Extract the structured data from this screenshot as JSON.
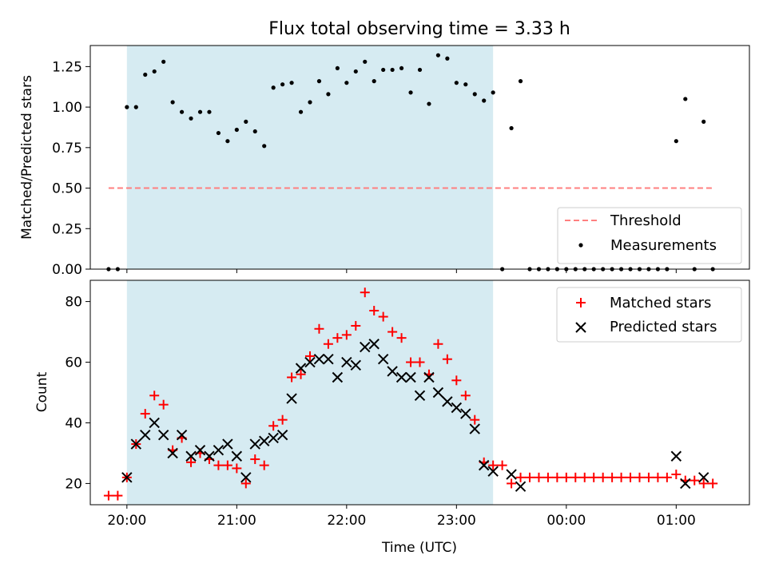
{
  "chart_data": [
    {
      "type": "scatter",
      "title": "Flux total observing time = 3.33 h",
      "ylabel": "Matched/Predicted stars",
      "xlabel": "",
      "ylim": [
        0,
        1.38
      ],
      "yticks": [
        0.0,
        0.25,
        0.5,
        0.75,
        1.0,
        1.25
      ],
      "ytick_labels": [
        "0.00",
        "0.25",
        "0.50",
        "0.75",
        "1.00",
        "1.25"
      ],
      "shaded_region": {
        "x_start": "20:00",
        "x_end": "23:20",
        "color": "#add8e6"
      },
      "legend": {
        "placement": "lower-right",
        "entries": [
          "Threshold",
          "Measurements"
        ]
      },
      "threshold": {
        "name": "Threshold",
        "value": 0.5,
        "x_start": "19:50",
        "x_end": "01:20",
        "color": "#ff7f7f"
      },
      "series": [
        {
          "name": "Measurements",
          "color": "#000000",
          "x": [
            "19:50",
            "19:55",
            "20:00",
            "20:05",
            "20:10",
            "20:15",
            "20:20",
            "20:25",
            "20:30",
            "20:35",
            "20:40",
            "20:45",
            "20:50",
            "20:55",
            "21:00",
            "21:05",
            "21:10",
            "21:15",
            "21:20",
            "21:25",
            "21:30",
            "21:35",
            "21:40",
            "21:45",
            "21:50",
            "21:55",
            "22:00",
            "22:05",
            "22:10",
            "22:15",
            "22:20",
            "22:25",
            "22:30",
            "22:35",
            "22:40",
            "22:45",
            "22:50",
            "22:55",
            "23:00",
            "23:05",
            "23:10",
            "23:15",
            "23:20",
            "23:25",
            "23:30",
            "23:35",
            "23:40",
            "23:45",
            "23:50",
            "23:55",
            "00:00",
            "00:05",
            "00:10",
            "00:15",
            "00:20",
            "00:25",
            "00:30",
            "00:35",
            "00:40",
            "00:45",
            "00:50",
            "00:55",
            "01:00",
            "01:05",
            "01:10",
            "01:15",
            "01:20"
          ],
          "y": [
            0.0,
            0.0,
            1.0,
            1.0,
            1.2,
            1.22,
            1.28,
            1.03,
            0.97,
            0.93,
            0.97,
            0.97,
            0.84,
            0.79,
            0.86,
            0.91,
            0.85,
            0.76,
            1.12,
            1.14,
            1.15,
            0.97,
            1.03,
            1.16,
            1.08,
            1.24,
            1.15,
            1.22,
            1.28,
            1.16,
            1.23,
            1.23,
            1.24,
            1.09,
            1.23,
            1.02,
            1.32,
            1.3,
            1.15,
            1.14,
            1.08,
            1.04,
            1.09,
            0.0,
            0.87,
            1.16,
            0.0,
            0.0,
            0.0,
            0.0,
            0.0,
            0.0,
            0.0,
            0.0,
            0.0,
            0.0,
            0.0,
            0.0,
            0.0,
            0.0,
            0.0,
            0.0,
            0.79,
            1.05,
            0.0,
            0.91,
            0.0
          ]
        }
      ]
    },
    {
      "type": "scatter",
      "title": "",
      "xlabel": "Time (UTC)",
      "ylabel": "Count",
      "ylim": [
        13,
        87
      ],
      "yticks": [
        20,
        40,
        60,
        80
      ],
      "ytick_labels": [
        "20",
        "40",
        "60",
        "80"
      ],
      "xlim": [
        "19:40",
        "01:40"
      ],
      "xticks": [
        "20:00",
        "21:00",
        "22:00",
        "23:00",
        "00:00",
        "01:00"
      ],
      "shaded_region": {
        "x_start": "20:00",
        "x_end": "23:20",
        "color": "#add8e6"
      },
      "legend": {
        "placement": "top-right",
        "entries": [
          "Matched stars",
          "Predicted stars"
        ]
      },
      "series": [
        {
          "name": "Matched stars",
          "marker": "+",
          "color": "#ff0000",
          "x": [
            "19:50",
            "19:55",
            "20:00",
            "20:05",
            "20:10",
            "20:15",
            "20:20",
            "20:25",
            "20:30",
            "20:35",
            "20:40",
            "20:45",
            "20:50",
            "20:55",
            "21:00",
            "21:05",
            "21:10",
            "21:15",
            "21:20",
            "21:25",
            "21:30",
            "21:35",
            "21:40",
            "21:45",
            "21:50",
            "21:55",
            "22:00",
            "22:05",
            "22:10",
            "22:15",
            "22:20",
            "22:25",
            "22:30",
            "22:35",
            "22:40",
            "22:45",
            "22:50",
            "22:55",
            "23:00",
            "23:05",
            "23:10",
            "23:15",
            "23:20",
            "23:25",
            "23:30",
            "23:35",
            "23:40",
            "23:45",
            "23:50",
            "23:55",
            "00:00",
            "00:05",
            "00:10",
            "00:15",
            "00:20",
            "00:25",
            "00:30",
            "00:35",
            "00:40",
            "00:45",
            "00:50",
            "00:55",
            "01:00",
            "01:05",
            "01:10",
            "01:15",
            "01:20"
          ],
          "y": [
            16,
            16,
            22,
            33,
            43,
            49,
            46,
            31,
            35,
            27,
            30,
            28,
            26,
            26,
            25,
            20,
            28,
            26,
            39,
            41,
            55,
            56,
            62,
            71,
            66,
            68,
            69,
            72,
            83,
            77,
            75,
            70,
            68,
            60,
            60,
            56,
            66,
            61,
            54,
            49,
            41,
            27,
            26,
            26,
            20,
            22,
            22,
            22,
            22,
            22,
            22,
            22,
            22,
            22,
            22,
            22,
            22,
            22,
            22,
            22,
            22,
            22,
            23,
            21,
            21,
            20,
            20
          ]
        },
        {
          "name": "Predicted stars",
          "marker": "x",
          "color": "#000000",
          "x": [
            "20:00",
            "20:05",
            "20:10",
            "20:15",
            "20:20",
            "20:25",
            "20:30",
            "20:35",
            "20:40",
            "20:45",
            "20:50",
            "20:55",
            "21:00",
            "21:05",
            "21:10",
            "21:15",
            "21:20",
            "21:25",
            "21:30",
            "21:35",
            "21:40",
            "21:45",
            "21:50",
            "21:55",
            "22:00",
            "22:05",
            "22:10",
            "22:15",
            "22:20",
            "22:25",
            "22:30",
            "22:35",
            "22:40",
            "22:45",
            "22:50",
            "22:55",
            "23:00",
            "23:05",
            "23:10",
            "23:15",
            "23:20",
            "23:30",
            "23:35",
            "01:00",
            "01:05",
            "01:15"
          ],
          "y": [
            22,
            33,
            36,
            40,
            36,
            30,
            36,
            29,
            31,
            29,
            31,
            33,
            29,
            22,
            33,
            34,
            35,
            36,
            48,
            58,
            60,
            61,
            61,
            55,
            60,
            59,
            65,
            66,
            61,
            57,
            55,
            55,
            49,
            55,
            50,
            47,
            45,
            43,
            38,
            26,
            24,
            23,
            19,
            29,
            20,
            22
          ]
        }
      ]
    }
  ]
}
